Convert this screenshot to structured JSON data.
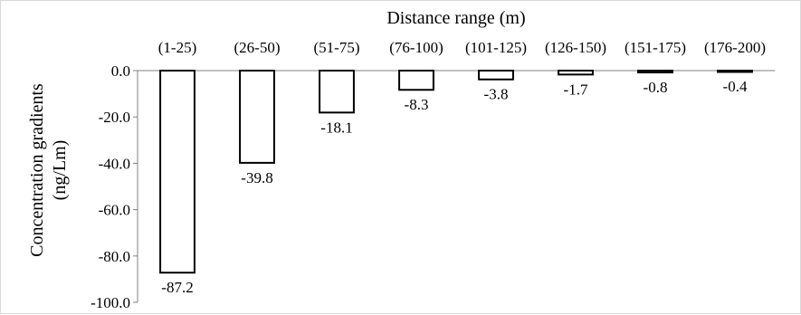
{
  "chart_data": {
    "type": "bar",
    "title": "",
    "xlabel": "Distance range (m)",
    "ylabel": "Concentration gradients (ng/Lm)",
    "ylabel_lines": [
      "Concentration gradients",
      "(ng/Lm)"
    ],
    "categories": [
      "(1-25)",
      "(26-50)",
      "(51-75)",
      "(76-100)",
      "(101-125)",
      "(126-150)",
      "(151-175)",
      "(176-200)"
    ],
    "values": [
      -87.2,
      -39.8,
      -18.1,
      -8.3,
      -3.8,
      -1.7,
      -0.8,
      -0.4
    ],
    "value_labels": [
      "-87.2",
      "-39.8",
      "-18.1",
      "-8.3",
      "-3.8",
      "-1.7",
      "-0.8",
      "-0.4"
    ],
    "ylim": [
      -100,
      0
    ],
    "yticks": [
      0,
      -20,
      -40,
      -60,
      -80,
      -100
    ],
    "ytick_labels": [
      "0.0",
      "-20.0",
      "-40.0",
      "-60.0",
      "-80.0",
      "-100.0"
    ],
    "x_axis_position": "top",
    "grid": false,
    "legend": "none",
    "bar_fill": "#ffffff",
    "bar_stroke": "#000000"
  }
}
